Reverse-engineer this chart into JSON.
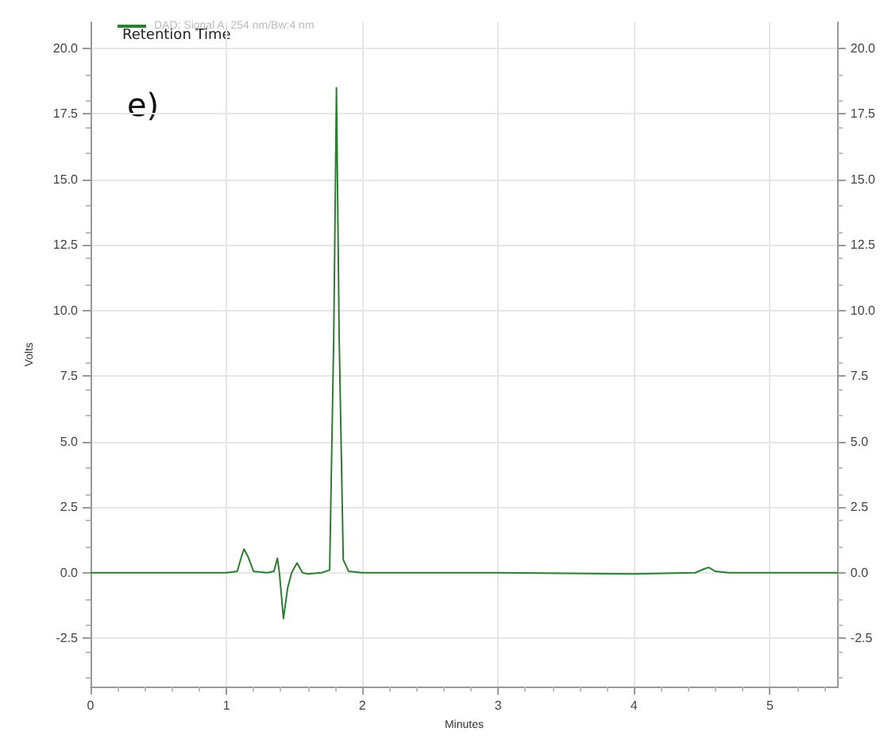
{
  "chart_data": {
    "type": "line",
    "xlabel": "Minutes",
    "ylabel": "Volts",
    "annotations": [
      "Retention Time",
      "e)"
    ],
    "series": [
      {
        "name": "DAD: Signal A, 254 nm/Bw:4 nm",
        "color": "#2e7d32",
        "x": [
          0,
          1.0,
          1.08,
          1.11,
          1.13,
          1.16,
          1.2,
          1.3,
          1.35,
          1.375,
          1.39,
          1.42,
          1.45,
          1.48,
          1.52,
          1.56,
          1.6,
          1.7,
          1.76,
          1.79,
          1.81,
          1.83,
          1.86,
          1.9,
          2.0,
          3.0,
          4.0,
          4.45,
          4.52,
          4.55,
          4.6,
          4.7,
          5.5
        ],
        "values": [
          0,
          0,
          0.05,
          0.6,
          0.9,
          0.6,
          0.05,
          0,
          0.05,
          0.55,
          0,
          -1.75,
          -0.6,
          0,
          0.37,
          0,
          -0.05,
          0,
          0.1,
          9,
          18.5,
          9,
          0.5,
          0.05,
          0,
          0,
          -0.05,
          0,
          0.15,
          0.2,
          0.05,
          0,
          0
        ]
      }
    ],
    "xlim": [
      0,
      5.5
    ],
    "xticks": [
      0,
      1,
      2,
      3,
      4,
      5
    ],
    "ylim": [
      -4.35,
      21
    ],
    "yticks": [
      -2.5,
      {
        "value": 0,
        "label": "0.0"
      },
      2.5,
      {
        "value": 5,
        "label": "5.0"
      },
      7.5,
      {
        "value": 10,
        "label": "10.0"
      },
      12.5,
      {
        "value": 15,
        "label": "15.0"
      },
      17.5,
      {
        "value": 20,
        "label": "20.0"
      }
    ],
    "y2lim": [
      -4.35,
      21
    ],
    "y2ticks": [
      -2.5,
      {
        "value": 0,
        "label": "0.0"
      },
      2.5,
      {
        "value": 5,
        "label": "5.0"
      },
      7.5,
      {
        "value": 10,
        "label": "10.0"
      },
      12.5,
      {
        "value": 15,
        "label": "15.0"
      },
      17.5,
      {
        "value": 20,
        "label": "20.0"
      }
    ],
    "grid": true,
    "legend": "top left",
    "marker": "none",
    "line_style": "solid"
  }
}
